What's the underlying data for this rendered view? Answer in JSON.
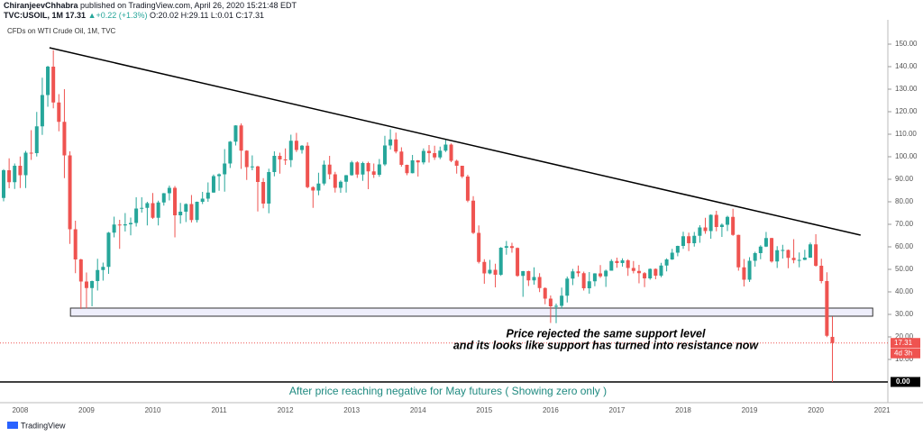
{
  "header": {
    "author": "ChiranjeevChhabra",
    "published": "published on TradingView.com, April 26, 2020 15:21:48 EDT",
    "symbol": "TVC:USOIL, 1M",
    "last": "17.31",
    "change": "▲+0.22 (+1.3%)",
    "ohlc_text": "O:20.02 H:29.11 L:0.01 C:17.31"
  },
  "brand": "TradingView",
  "chart_data": {
    "type": "candlestick",
    "title": "CFDs on WTI Crude Oil, 1M, TVC",
    "up_color": "#26a69a",
    "down_color": "#ef5350",
    "ylim": [
      -9.2,
      158.8
    ],
    "yticks": [
      {
        "value": 10,
        "label": "10.00"
      },
      {
        "value": 20,
        "label": "20.00"
      },
      {
        "value": 30,
        "label": "30.00"
      },
      {
        "value": 40,
        "label": "40.00"
      },
      {
        "value": 50,
        "label": "50.00"
      },
      {
        "value": 60,
        "label": "60.00"
      },
      {
        "value": 70,
        "label": "70.00"
      },
      {
        "value": 80,
        "label": "80.00"
      },
      {
        "value": 90,
        "label": "90.00"
      },
      {
        "value": 100,
        "label": "100.00"
      },
      {
        "value": 110,
        "label": "110.00"
      },
      {
        "value": 120,
        "label": "120.00"
      },
      {
        "value": 130,
        "label": "130.00"
      },
      {
        "value": 140,
        "label": "140.00"
      },
      {
        "value": 150,
        "label": "150.00"
      }
    ],
    "categories": [
      null,
      null,
      null,
      "2008",
      null,
      null,
      null,
      null,
      null,
      null,
      null,
      null,
      null,
      null,
      null,
      "2009",
      null,
      null,
      null,
      null,
      null,
      null,
      null,
      null,
      null,
      null,
      null,
      "2010",
      null,
      null,
      null,
      null,
      null,
      null,
      null,
      null,
      null,
      null,
      null,
      "2011",
      null,
      null,
      null,
      null,
      null,
      null,
      null,
      null,
      null,
      null,
      null,
      "2012",
      null,
      null,
      null,
      null,
      null,
      null,
      null,
      null,
      null,
      null,
      null,
      "2013",
      null,
      null,
      null,
      null,
      null,
      null,
      null,
      null,
      null,
      null,
      null,
      "2014",
      null,
      null,
      null,
      null,
      null,
      null,
      null,
      null,
      null,
      null,
      null,
      "2015",
      null,
      null,
      null,
      null,
      null,
      null,
      null,
      null,
      null,
      null,
      null,
      "2016",
      null,
      null,
      null,
      null,
      null,
      null,
      null,
      null,
      null,
      null,
      null,
      "2017",
      null,
      null,
      null,
      null,
      null,
      null,
      null,
      null,
      null,
      null,
      null,
      "2018",
      null,
      null,
      null,
      null,
      null,
      null,
      null,
      null,
      null,
      null,
      null,
      "2019",
      null,
      null,
      null,
      null,
      null,
      null,
      null,
      null,
      null,
      null,
      null,
      "2020",
      null,
      null,
      null,
      null,
      null,
      null,
      null,
      null,
      null,
      null,
      null,
      "2021"
    ],
    "ohlc": [
      [
        81.7,
        94.5,
        80.2,
        94.0
      ],
      [
        94.0,
        99.3,
        86.0,
        88.7
      ],
      [
        88.7,
        97.0,
        85.7,
        96.0
      ],
      [
        96.0,
        100.1,
        86.1,
        91.8
      ],
      [
        91.8,
        102.6,
        86.1,
        101.8
      ],
      [
        101.8,
        111.8,
        98.6,
        101.6
      ],
      [
        101.6,
        119.9,
        100.1,
        113.5
      ],
      [
        113.5,
        135.1,
        109.7,
        127.4
      ],
      [
        127.4,
        140.4,
        122.2,
        140.0
      ],
      [
        140.0,
        147.3,
        121.5,
        124.1
      ],
      [
        124.1,
        127.8,
        111.3,
        115.5
      ],
      [
        115.5,
        130.0,
        90.5,
        100.6
      ],
      [
        100.6,
        102.4,
        61.3,
        67.8
      ],
      [
        67.8,
        71.6,
        48.3,
        54.4
      ],
      [
        54.4,
        54.7,
        32.4,
        44.6
      ],
      [
        44.6,
        48.6,
        32.7,
        41.7
      ],
      [
        41.7,
        45.0,
        33.6,
        44.8
      ],
      [
        44.8,
        54.7,
        40.6,
        49.7
      ],
      [
        49.7,
        53.0,
        45.0,
        51.1
      ],
      [
        51.1,
        66.6,
        48.0,
        66.3
      ],
      [
        66.3,
        73.4,
        64.2,
        69.9
      ],
      [
        69.9,
        72.0,
        59.1,
        69.5
      ],
      [
        69.5,
        75.0,
        66.8,
        70.0
      ],
      [
        70.0,
        73.0,
        65.1,
        70.6
      ],
      [
        70.6,
        82.0,
        69.0,
        77.0
      ],
      [
        77.0,
        82.0,
        75.2,
        77.3
      ],
      [
        77.3,
        80.0,
        69.5,
        79.4
      ],
      [
        79.4,
        83.9,
        72.4,
        72.9
      ],
      [
        72.9,
        80.5,
        69.5,
        79.7
      ],
      [
        79.7,
        83.9,
        78.3,
        83.8
      ],
      [
        83.8,
        87.2,
        80.6,
        86.2
      ],
      [
        86.2,
        87.0,
        64.2,
        74.0
      ],
      [
        74.0,
        79.5,
        70.3,
        75.6
      ],
      [
        75.6,
        79.3,
        71.0,
        79.0
      ],
      [
        79.0,
        83.0,
        70.8,
        71.9
      ],
      [
        71.9,
        80.1,
        70.8,
        80.0
      ],
      [
        80.0,
        84.4,
        79.0,
        81.4
      ],
      [
        81.4,
        88.6,
        80.0,
        84.1
      ],
      [
        84.1,
        92.1,
        84.0,
        91.4
      ],
      [
        91.4,
        92.6,
        84.9,
        92.2
      ],
      [
        92.2,
        103.4,
        84.5,
        97.0
      ],
      [
        97.0,
        107.0,
        95.0,
        106.7
      ],
      [
        106.7,
        114.0,
        105.0,
        113.9
      ],
      [
        113.9,
        114.8,
        94.6,
        102.7
      ],
      [
        102.7,
        102.9,
        89.7,
        95.4
      ],
      [
        95.4,
        100.6,
        94.0,
        95.7
      ],
      [
        95.7,
        96.0,
        75.7,
        88.8
      ],
      [
        88.8,
        90.5,
        77.1,
        79.2
      ],
      [
        79.2,
        94.7,
        74.9,
        93.2
      ],
      [
        93.2,
        102.4,
        91.3,
        100.4
      ],
      [
        100.4,
        101.8,
        92.5,
        98.8
      ],
      [
        98.8,
        103.7,
        96.4,
        98.5
      ],
      [
        98.5,
        109.8,
        95.4,
        107.1
      ],
      [
        107.1,
        110.6,
        102.1,
        103.0
      ],
      [
        103.0,
        105.2,
        101.4,
        104.9
      ],
      [
        104.9,
        106.4,
        86.0,
        86.5
      ],
      [
        86.5,
        86.9,
        77.3,
        85.0
      ],
      [
        85.0,
        92.9,
        82.9,
        88.1
      ],
      [
        88.1,
        98.3,
        87.3,
        96.5
      ],
      [
        96.5,
        100.4,
        90.0,
        92.2
      ],
      [
        92.2,
        93.3,
        84.1,
        86.2
      ],
      [
        86.2,
        89.5,
        84.0,
        88.9
      ],
      [
        88.9,
        91.9,
        84.1,
        91.8
      ],
      [
        91.8,
        98.2,
        91.6,
        97.5
      ],
      [
        97.5,
        98.0,
        90.6,
        92.1
      ],
      [
        92.1,
        97.8,
        89.3,
        97.2
      ],
      [
        97.2,
        97.8,
        85.6,
        93.5
      ],
      [
        93.5,
        97.0,
        90.6,
        92.0
      ],
      [
        92.0,
        99.0,
        91.1,
        96.6
      ],
      [
        96.6,
        109.3,
        95.9,
        105.0
      ],
      [
        105.0,
        112.2,
        103.2,
        107.7
      ],
      [
        107.7,
        110.7,
        101.5,
        102.3
      ],
      [
        102.3,
        104.2,
        95.6,
        96.4
      ],
      [
        96.4,
        96.5,
        91.8,
        92.7
      ],
      [
        92.7,
        100.8,
        92.6,
        98.4
      ],
      [
        98.4,
        98.5,
        91.2,
        97.5
      ],
      [
        97.5,
        103.7,
        96.6,
        102.6
      ],
      [
        102.6,
        105.2,
        97.4,
        101.6
      ],
      [
        101.6,
        104.9,
        98.6,
        99.7
      ],
      [
        99.7,
        104.5,
        98.9,
        102.7
      ],
      [
        102.7,
        107.7,
        102.1,
        105.4
      ],
      [
        105.4,
        105.9,
        97.6,
        98.2
      ],
      [
        98.2,
        98.7,
        92.5,
        96.0
      ],
      [
        96.0,
        96.0,
        90.5,
        91.2
      ],
      [
        91.2,
        92.0,
        79.8,
        80.5
      ],
      [
        80.5,
        82.5,
        65.7,
        66.2
      ],
      [
        66.2,
        69.5,
        52.6,
        53.3
      ],
      [
        53.3,
        54.5,
        43.6,
        48.2
      ],
      [
        48.2,
        54.2,
        47.8,
        49.8
      ],
      [
        49.8,
        52.5,
        42.0,
        47.6
      ],
      [
        47.6,
        59.9,
        47.1,
        59.6
      ],
      [
        59.6,
        62.6,
        56.5,
        60.3
      ],
      [
        60.3,
        61.8,
        57.4,
        59.5
      ],
      [
        59.5,
        59.7,
        46.7,
        47.1
      ],
      [
        47.1,
        49.3,
        37.8,
        49.2
      ],
      [
        49.2,
        49.4,
        42.6,
        45.1
      ],
      [
        45.1,
        50.9,
        43.2,
        46.6
      ],
      [
        46.6,
        48.3,
        39.9,
        41.7
      ],
      [
        41.7,
        42.0,
        34.5,
        37.0
      ],
      [
        37.0,
        38.4,
        26.2,
        33.6
      ],
      [
        33.6,
        34.8,
        26.1,
        33.8
      ],
      [
        33.8,
        41.9,
        32.5,
        38.3
      ],
      [
        38.3,
        46.8,
        35.3,
        45.9
      ],
      [
        45.9,
        50.2,
        43.0,
        49.1
      ],
      [
        49.1,
        51.7,
        46.7,
        48.3
      ],
      [
        48.3,
        49.0,
        40.6,
        41.6
      ],
      [
        41.6,
        48.8,
        39.2,
        44.7
      ],
      [
        44.7,
        48.3,
        42.5,
        48.2
      ],
      [
        48.2,
        51.9,
        46.2,
        46.9
      ],
      [
        46.9,
        49.9,
        42.2,
        49.4
      ],
      [
        49.4,
        54.5,
        49.4,
        53.7
      ],
      [
        53.7,
        55.2,
        50.7,
        52.8
      ],
      [
        52.8,
        54.9,
        51.2,
        54.0
      ],
      [
        54.0,
        54.5,
        47.1,
        50.6
      ],
      [
        50.6,
        53.7,
        48.2,
        49.3
      ],
      [
        49.3,
        52.0,
        43.8,
        48.3
      ],
      [
        48.3,
        48.8,
        42.1,
        46.0
      ],
      [
        46.0,
        50.4,
        45.4,
        50.2
      ],
      [
        50.2,
        50.4,
        45.6,
        47.2
      ],
      [
        47.2,
        52.9,
        46.5,
        51.7
      ],
      [
        51.7,
        54.9,
        49.1,
        54.4
      ],
      [
        54.4,
        59.1,
        54.2,
        57.4
      ],
      [
        57.4,
        60.5,
        55.8,
        60.4
      ],
      [
        60.4,
        66.7,
        59.1,
        64.7
      ],
      [
        64.7,
        66.3,
        58.1,
        61.6
      ],
      [
        61.6,
        66.6,
        60.1,
        64.9
      ],
      [
        64.9,
        69.6,
        61.8,
        68.6
      ],
      [
        68.6,
        72.9,
        65.8,
        67.0
      ],
      [
        67.0,
        74.4,
        63.6,
        74.2
      ],
      [
        74.2,
        76.0,
        66.9,
        68.8
      ],
      [
        68.8,
        70.4,
        64.4,
        69.8
      ],
      [
        69.8,
        73.8,
        67.0,
        73.3
      ],
      [
        73.3,
        76.9,
        64.9,
        65.3
      ],
      [
        65.3,
        65.4,
        49.4,
        50.9
      ],
      [
        50.9,
        54.6,
        42.4,
        45.4
      ],
      [
        45.4,
        55.4,
        44.4,
        53.8
      ],
      [
        53.8,
        57.8,
        51.2,
        57.2
      ],
      [
        57.2,
        60.7,
        54.5,
        60.1
      ],
      [
        60.1,
        66.6,
        59.9,
        63.9
      ],
      [
        63.9,
        64.0,
        53.0,
        53.5
      ],
      [
        53.5,
        60.3,
        50.6,
        58.5
      ],
      [
        58.5,
        60.9,
        54.8,
        58.6
      ],
      [
        58.6,
        58.8,
        50.5,
        55.1
      ],
      [
        55.1,
        63.4,
        52.7,
        54.1
      ],
      [
        54.1,
        57.5,
        50.9,
        54.2
      ],
      [
        54.2,
        58.7,
        54.1,
        55.2
      ],
      [
        55.2,
        61.9,
        55.1,
        61.1
      ],
      [
        61.1,
        65.6,
        51.2,
        51.6
      ],
      [
        51.6,
        54.7,
        43.8,
        44.8
      ],
      [
        44.8,
        48.7,
        19.9,
        20.5
      ],
      [
        20.02,
        29.11,
        0.01,
        17.31
      ],
      null,
      null,
      null,
      null,
      null,
      null,
      null,
      null,
      null
    ],
    "trendline": {
      "x": [
        8.3,
        155.1
      ],
      "y": [
        148.4,
        65.2
      ]
    },
    "support_zone": {
      "x": [
        12.1,
        157.3
      ],
      "y": [
        29.2,
        32.8
      ]
    },
    "last_price": 17.31,
    "last_price_color": "#ef5350",
    "countdown": "4d 3h",
    "zero_line": {
      "value": 0,
      "label": "0.00"
    },
    "annotations": [
      "Price rejected the same support level",
      "and its looks like support has turned into resistance now"
    ],
    "note": "After price reaching negative for May futures ( Showing zero only )"
  }
}
